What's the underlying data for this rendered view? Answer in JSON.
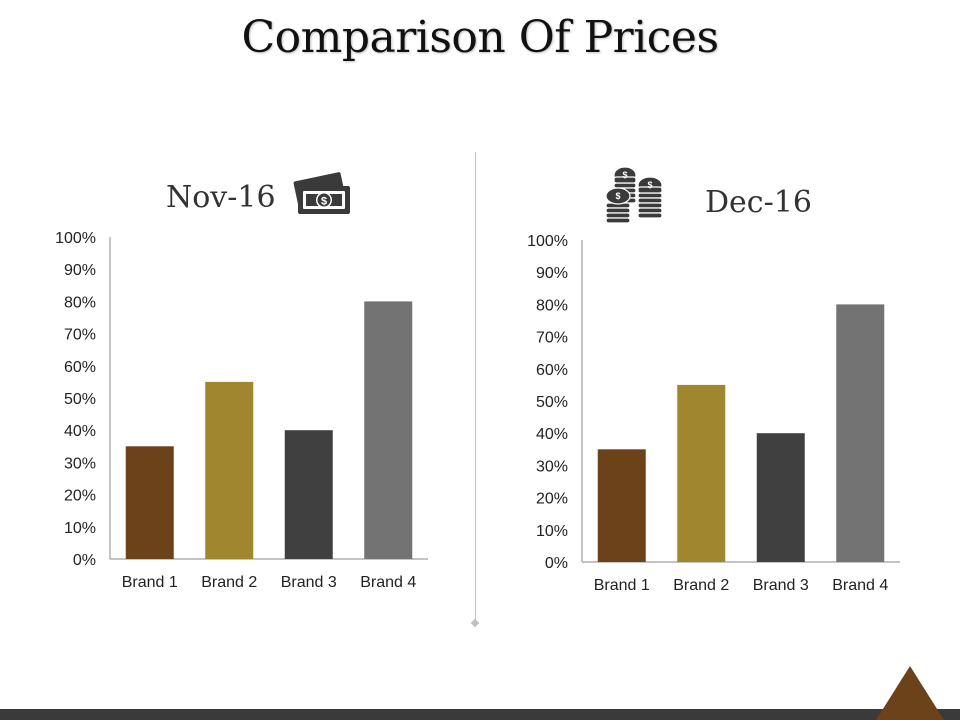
{
  "slide": {
    "title": "Comparison Of Prices"
  },
  "colors": {
    "brand1": "#6b4219",
    "brand2": "#a0862e",
    "brand3": "#404040",
    "brand4": "#737373",
    "footer": "#3a3a3a",
    "accent": "#6b4219"
  },
  "icons": {
    "left": "money-bill-icon",
    "right": "coin-stack-icon"
  },
  "chart_data": [
    {
      "type": "bar",
      "title": "Nov-16",
      "categories": [
        "Brand 1",
        "Brand 2",
        "Brand 3",
        "Brand 4"
      ],
      "values": [
        35,
        55,
        40,
        80
      ],
      "y_ticks": [
        "0%",
        "10%",
        "20%",
        "30%",
        "40%",
        "50%",
        "60%",
        "70%",
        "80%",
        "90%",
        "100%"
      ],
      "xlabel": "",
      "ylabel": "",
      "ylim": [
        0,
        100
      ],
      "grid": false,
      "legend": "none"
    },
    {
      "type": "bar",
      "title": "Dec-16",
      "categories": [
        "Brand 1",
        "Brand 2",
        "Brand 3",
        "Brand 4"
      ],
      "values": [
        35,
        55,
        40,
        80
      ],
      "y_ticks": [
        "0%",
        "10%",
        "20%",
        "30%",
        "40%",
        "50%",
        "60%",
        "70%",
        "80%",
        "90%",
        "100%"
      ],
      "xlabel": "",
      "ylabel": "",
      "ylim": [
        0,
        100
      ],
      "grid": false,
      "legend": "none"
    }
  ]
}
